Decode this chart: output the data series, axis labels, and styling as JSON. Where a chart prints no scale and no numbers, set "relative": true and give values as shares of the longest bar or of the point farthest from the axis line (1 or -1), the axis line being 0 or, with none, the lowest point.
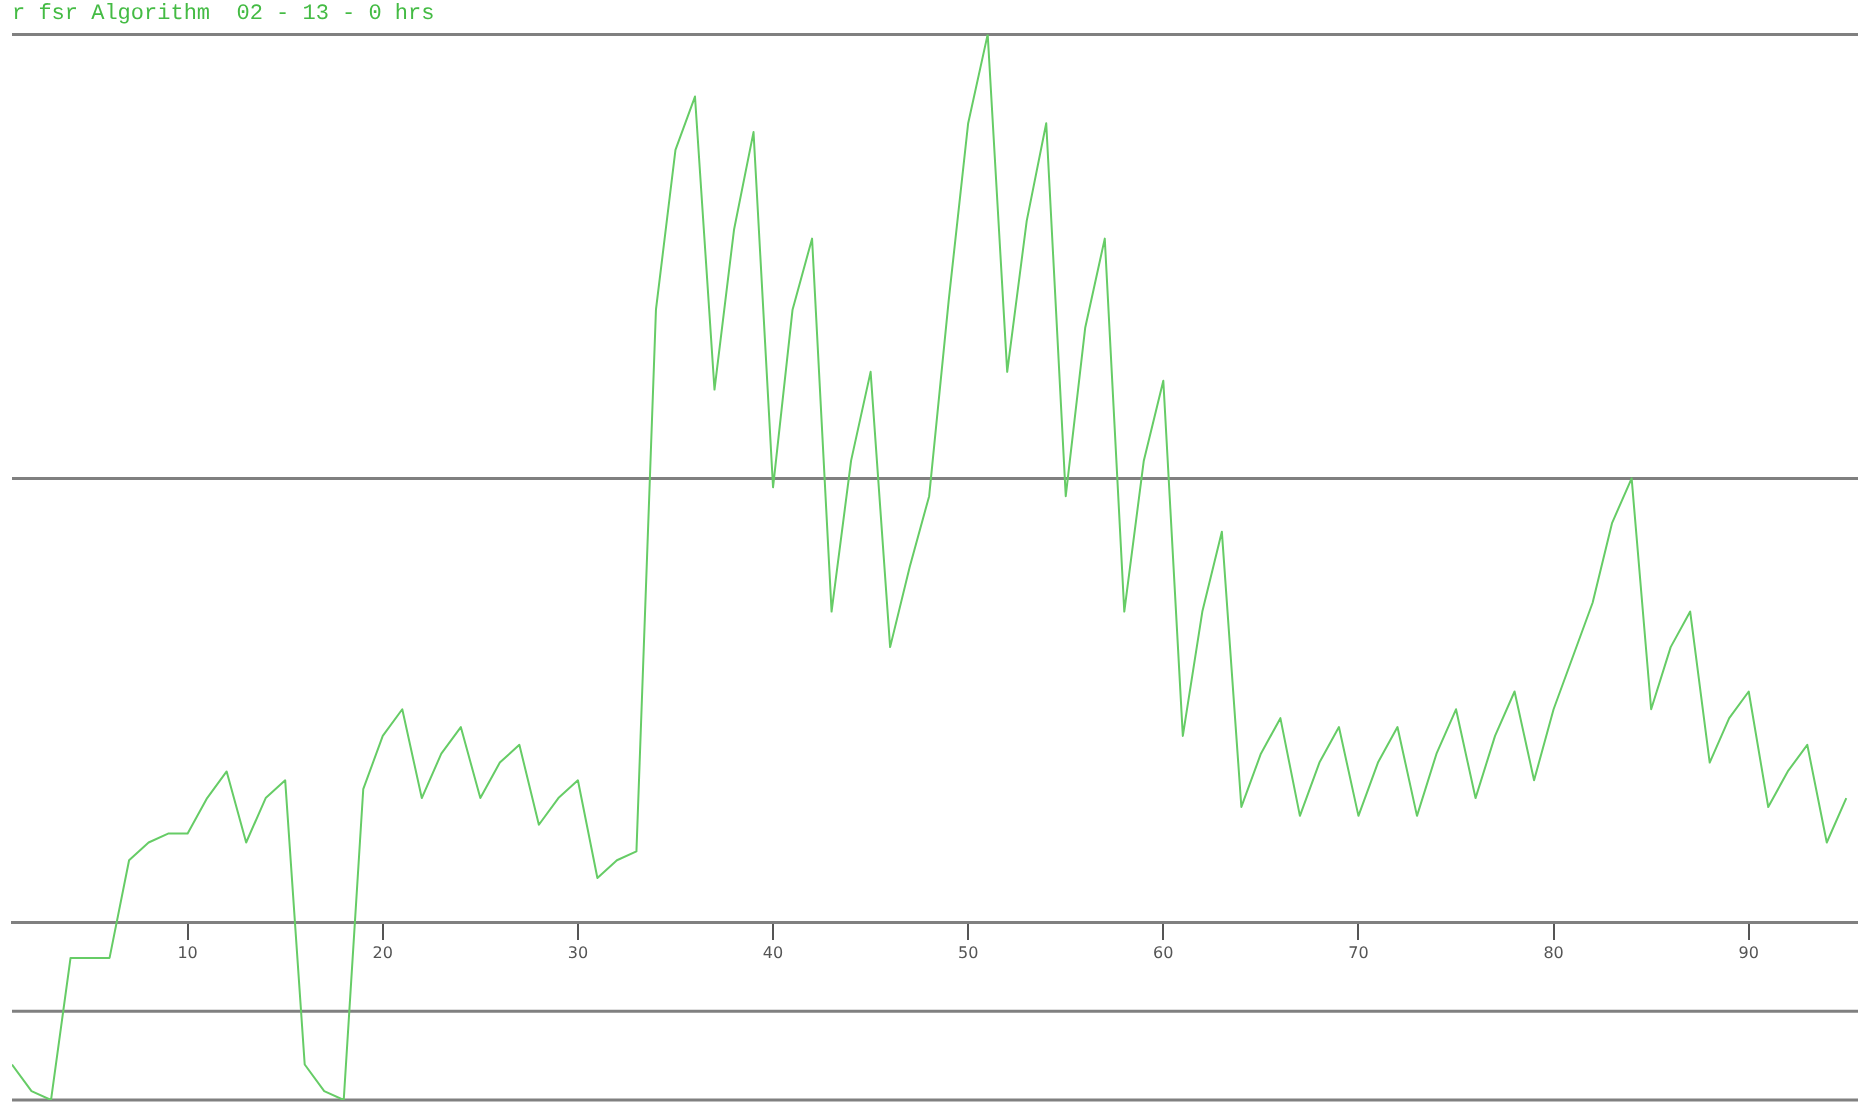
{
  "chart_data": {
    "type": "line",
    "title": "r fsr Algorithm  02 - 13 - 0 hrs",
    "relative": true,
    "x": [
      1,
      2,
      3,
      4,
      5,
      6,
      7,
      8,
      9,
      10,
      11,
      12,
      13,
      14,
      15,
      16,
      17,
      18,
      19,
      20,
      21,
      22,
      23,
      24,
      25,
      26,
      27,
      28,
      29,
      30,
      31,
      32,
      33,
      34,
      35,
      36,
      37,
      38,
      39,
      40,
      41,
      42,
      43,
      44,
      45,
      46,
      47,
      48,
      49,
      50,
      51,
      52,
      53,
      54,
      55,
      56,
      57,
      58,
      59,
      60,
      61,
      62,
      63,
      64,
      65,
      66,
      67,
      68,
      69,
      70,
      71,
      72,
      73,
      74,
      75,
      76,
      77,
      78,
      79,
      80,
      81,
      82,
      83,
      84,
      85,
      86,
      87,
      88,
      89,
      90,
      91,
      92,
      93,
      94,
      95
    ],
    "series": [
      {
        "color": "#66cc66",
        "values": [
          -0.16,
          -0.19,
          -0.2,
          -0.04,
          -0.04,
          -0.04,
          0.07,
          0.09,
          0.1,
          0.1,
          0.14,
          0.17,
          0.09,
          0.14,
          0.16,
          -0.16,
          -0.19,
          -0.2,
          0.15,
          0.21,
          0.24,
          0.14,
          0.19,
          0.22,
          0.14,
          0.18,
          0.2,
          0.11,
          0.14,
          0.16,
          0.05,
          0.07,
          0.08,
          0.69,
          0.87,
          0.93,
          0.6,
          0.78,
          0.89,
          0.49,
          0.69,
          0.77,
          0.35,
          0.52,
          0.62,
          0.31,
          0.4,
          0.48,
          0.7,
          0.9,
          1.0,
          0.62,
          0.79,
          0.9,
          0.48,
          0.67,
          0.77,
          0.35,
          0.52,
          0.61,
          0.21,
          0.35,
          0.44,
          0.13,
          0.19,
          0.23,
          0.12,
          0.18,
          0.22,
          0.12,
          0.18,
          0.22,
          0.12,
          0.19,
          0.24,
          0.14,
          0.21,
          0.26,
          0.16,
          0.24,
          0.3,
          0.36,
          0.45,
          0.5,
          0.24,
          0.31,
          0.35,
          0.18,
          0.23,
          0.26,
          0.13,
          0.17,
          0.2,
          0.09,
          0.14
        ]
      }
    ],
    "xlim": [
      1,
      95.6
    ],
    "xticks": [
      10,
      20,
      30,
      40,
      50,
      60,
      70,
      80,
      90
    ],
    "ref_lines": [
      {
        "axis": "y",
        "value": 1,
        "color": "#808080"
      },
      {
        "axis": "y",
        "value": 0.5,
        "color": "#808080"
      },
      {
        "axis": "y",
        "value": -0.1,
        "color": "#808080"
      },
      {
        "axis": "y",
        "value": -0.2,
        "color": "#808080"
      }
    ],
    "grid": false,
    "legend": false,
    "marker": "none",
    "line_style": "solid"
  }
}
